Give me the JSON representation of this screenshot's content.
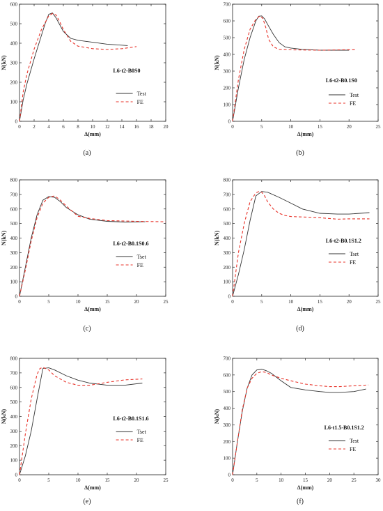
{
  "chart_data": [
    {
      "type": "line",
      "panel_label": "(a)",
      "annotation": "L6-t2-B0S0",
      "xlabel": "Δ(mm)",
      "ylabel": "N(kN)",
      "xlim": [
        0,
        20
      ],
      "ylim": [
        0,
        600
      ],
      "xticks": [
        0,
        2,
        4,
        6,
        8,
        10,
        12,
        14,
        16,
        18,
        20
      ],
      "yticks": [
        0,
        100,
        200,
        300,
        400,
        500,
        600
      ],
      "legend_position": "right-center",
      "series": [
        {
          "name": "Test",
          "style": "solid",
          "color": "#333333",
          "x": [
            0,
            0.5,
            1,
            2,
            3,
            3.5,
            4,
            4.5,
            5,
            6,
            7,
            8,
            10,
            12,
            14,
            14.8
          ],
          "y": [
            0,
            110,
            190,
            320,
            440,
            500,
            548,
            555,
            530,
            460,
            425,
            415,
            405,
            395,
            390,
            388
          ]
        },
        {
          "name": "FE",
          "style": "dashed",
          "color": "#e8332a",
          "x": [
            0,
            0.5,
            1,
            2,
            3,
            4,
            4.5,
            5,
            5.5,
            6,
            7,
            8,
            10,
            12,
            14,
            15.5,
            16
          ],
          "y": [
            0,
            150,
            240,
            370,
            470,
            540,
            552,
            545,
            510,
            470,
            410,
            385,
            372,
            368,
            372,
            380,
            383
          ]
        }
      ]
    },
    {
      "type": "line",
      "panel_label": "(b)",
      "annotation": "L6-t2-B0.1S0",
      "xlabel": "Δ(mm)",
      "ylabel": "N(kN)",
      "xlim": [
        0,
        25
      ],
      "ylim": [
        0,
        700
      ],
      "xticks": [
        0,
        5,
        10,
        15,
        20,
        25
      ],
      "yticks": [
        0,
        100,
        200,
        300,
        400,
        500,
        600,
        700
      ],
      "legend_position": "right-center",
      "series": [
        {
          "name": "Test",
          "style": "solid",
          "color": "#333333",
          "x": [
            0,
            1,
            2,
            3,
            4,
            4.5,
            5,
            5.5,
            6,
            7,
            8,
            9,
            10,
            12,
            15,
            20
          ],
          "y": [
            0,
            200,
            370,
            500,
            600,
            628,
            630,
            612,
            580,
            520,
            470,
            445,
            438,
            430,
            425,
            425
          ]
        },
        {
          "name": "FE",
          "style": "dashed",
          "color": "#e8332a",
          "x": [
            0,
            1,
            2,
            3,
            4,
            4.7,
            5.2,
            5.7,
            6.2,
            7,
            8,
            10,
            15,
            20,
            21
          ],
          "y": [
            0,
            250,
            430,
            550,
            610,
            630,
            615,
            560,
            490,
            445,
            430,
            427,
            425,
            428,
            428
          ]
        }
      ]
    },
    {
      "type": "line",
      "panel_label": "(c)",
      "annotation": "L6-t2-B0.1S0.6",
      "xlabel": "Δ(mm)",
      "ylabel": "N(kN)",
      "xlim": [
        0,
        25
      ],
      "ylim": [
        0,
        800
      ],
      "xticks": [
        0,
        5,
        10,
        15,
        20,
        25
      ],
      "yticks": [
        0,
        100,
        200,
        300,
        400,
        500,
        600,
        700,
        800
      ],
      "legend_position": "right-center",
      "series": [
        {
          "name": "Tset",
          "style": "solid",
          "color": "#333333",
          "x": [
            0,
            1,
            2,
            3,
            4,
            5,
            6,
            7,
            8,
            10,
            12,
            15,
            18,
            21.5
          ],
          "y": [
            0,
            200,
            400,
            560,
            660,
            685,
            680,
            650,
            610,
            560,
            530,
            515,
            510,
            512
          ]
        },
        {
          "name": "FE",
          "style": "dashed",
          "color": "#e8332a",
          "x": [
            0,
            1,
            2,
            3,
            4,
            5,
            6,
            7,
            8,
            10,
            12,
            15,
            20,
            25
          ],
          "y": [
            0,
            180,
            380,
            540,
            640,
            680,
            690,
            660,
            620,
            550,
            535,
            520,
            515,
            512
          ]
        }
      ]
    },
    {
      "type": "line",
      "panel_label": "(d)",
      "annotation": "L6-t2-B0.1S1.2",
      "xlabel": "Δ(mm)",
      "ylabel": "N(kN)",
      "xlim": [
        0,
        25
      ],
      "ylim": [
        0,
        800
      ],
      "xticks": [
        0,
        5,
        10,
        15,
        20,
        25
      ],
      "yticks": [
        0,
        100,
        200,
        300,
        400,
        500,
        600,
        700,
        800
      ],
      "legend_position": "right-center",
      "series": [
        {
          "name": "Tset",
          "style": "solid",
          "color": "#333333",
          "x": [
            0,
            1,
            2,
            3,
            4,
            5,
            6,
            8,
            10,
            12,
            15,
            18,
            20,
            23.5
          ],
          "y": [
            0,
            150,
            320,
            520,
            690,
            720,
            715,
            680,
            640,
            600,
            570,
            565,
            565,
            575
          ]
        },
        {
          "name": "FE",
          "style": "dashed",
          "color": "#e8332a",
          "x": [
            0,
            1,
            2,
            3,
            4,
            4.5,
            5,
            5.5,
            6,
            7,
            8,
            9,
            10,
            12,
            15,
            18,
            20,
            23.5
          ],
          "y": [
            0,
            300,
            500,
            650,
            710,
            720,
            715,
            690,
            650,
            600,
            570,
            555,
            548,
            545,
            540,
            530,
            532,
            532
          ]
        }
      ]
    },
    {
      "type": "line",
      "panel_label": "(e)",
      "annotation": "L6-t2-B0.1S1.6",
      "xlabel": "Δ(mm)",
      "ylabel": "N(kN)",
      "xlim": [
        0,
        25
      ],
      "ylim": [
        0,
        800
      ],
      "xticks": [
        0,
        5,
        10,
        15,
        20,
        25
      ],
      "yticks": [
        0,
        100,
        200,
        300,
        400,
        500,
        600,
        700,
        800
      ],
      "legend_position": "right-center",
      "series": [
        {
          "name": "Tset",
          "style": "solid",
          "color": "#333333",
          "x": [
            0,
            1,
            2,
            3,
            4,
            5,
            6,
            8,
            10,
            12,
            15,
            18,
            21
          ],
          "y": [
            0,
            130,
            300,
            520,
            730,
            735,
            720,
            680,
            650,
            630,
            615,
            615,
            630
          ]
        },
        {
          "name": "FE",
          "style": "dashed",
          "color": "#e8332a",
          "x": [
            0,
            1,
            2,
            3,
            3.5,
            4,
            5,
            6,
            8,
            10,
            12,
            15,
            18,
            21
          ],
          "y": [
            0,
            280,
            520,
            690,
            730,
            738,
            720,
            680,
            635,
            615,
            615,
            635,
            652,
            658
          ]
        }
      ]
    },
    {
      "type": "line",
      "panel_label": "(f)",
      "annotation": "L6-t1.5-B0.1S1.2",
      "xlabel": "Δ(mm)",
      "ylabel": "N(kN)",
      "xlim": [
        0,
        30
      ],
      "ylim": [
        0,
        700
      ],
      "xticks": [
        0,
        5,
        10,
        15,
        20,
        25,
        30
      ],
      "yticks": [
        0,
        100,
        200,
        300,
        400,
        500,
        600,
        700
      ],
      "legend_position": "right-center",
      "series": [
        {
          "name": "Test",
          "style": "solid",
          "color": "#333333",
          "x": [
            0,
            1,
            2,
            3,
            4,
            5,
            6,
            7,
            8,
            10,
            12,
            15,
            18,
            20,
            22,
            25,
            27.5
          ],
          "y": [
            0,
            200,
            380,
            520,
            600,
            630,
            635,
            625,
            610,
            565,
            525,
            510,
            500,
            495,
            495,
            500,
            515
          ]
        },
        {
          "name": "FE",
          "style": "dashed",
          "color": "#e8332a",
          "x": [
            0,
            1,
            2,
            3,
            4,
            5,
            6,
            7,
            8,
            10,
            12,
            15,
            18,
            20,
            22,
            25,
            28
          ],
          "y": [
            0,
            200,
            390,
            520,
            580,
            610,
            620,
            615,
            600,
            580,
            565,
            545,
            535,
            530,
            530,
            535,
            540
          ]
        }
      ]
    }
  ]
}
